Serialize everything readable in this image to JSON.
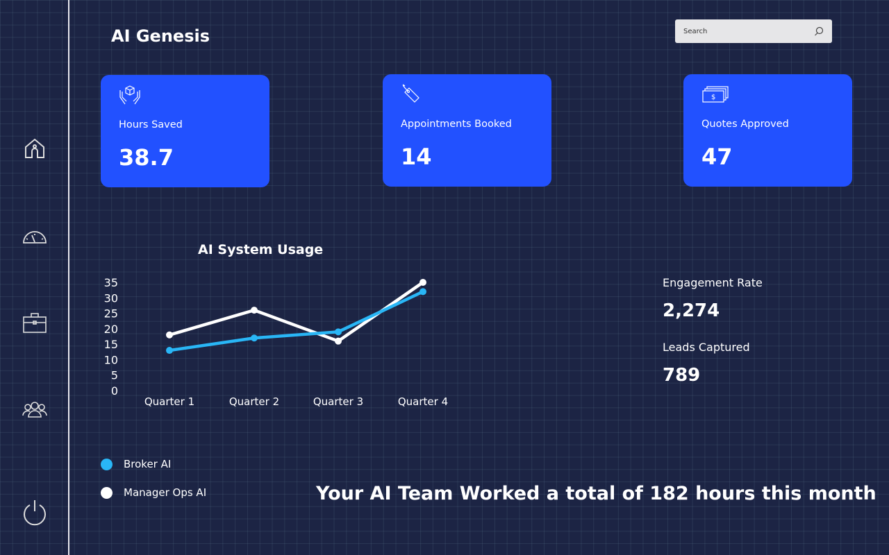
{
  "app": {
    "title": "AI Genesis"
  },
  "search": {
    "placeholder": "Search"
  },
  "nav": [
    {
      "icon": "home-icon"
    },
    {
      "icon": "gauge-icon"
    },
    {
      "icon": "briefcase-icon"
    },
    {
      "icon": "users-icon"
    },
    {
      "icon": "power-icon"
    }
  ],
  "cards": [
    {
      "label": "Hours Saved",
      "value": "38.7",
      "icon": "hands-box-icon"
    },
    {
      "label": "Appointments Booked",
      "value": "14",
      "icon": "tag-icon"
    },
    {
      "label": "Quotes Approved",
      "value": "47",
      "icon": "money-icon"
    }
  ],
  "chart_data": {
    "type": "line",
    "title": "AI System Usage",
    "categories": [
      "Quarter 1",
      "Quarter 2",
      "Quarter 3",
      "Quarter 4"
    ],
    "yticks": [
      "0",
      "5",
      "10",
      "15",
      "20",
      "25",
      "30",
      "35"
    ],
    "ylim": [
      0,
      35
    ],
    "grid": false,
    "legend": "bottom-left",
    "series": [
      {
        "name": "Broker AI",
        "color": "#29b6f6",
        "values": [
          13,
          17,
          19,
          32
        ]
      },
      {
        "name": "Manager Ops AI",
        "color": "#ffffff",
        "values": [
          18,
          26,
          16,
          35
        ]
      }
    ]
  },
  "stats": [
    {
      "label": "Engagement Rate",
      "value": "2,274"
    },
    {
      "label": "Leads Captured",
      "value": "789"
    }
  ],
  "footer": "Your AI Team Worked a total of 182 hours this month"
}
